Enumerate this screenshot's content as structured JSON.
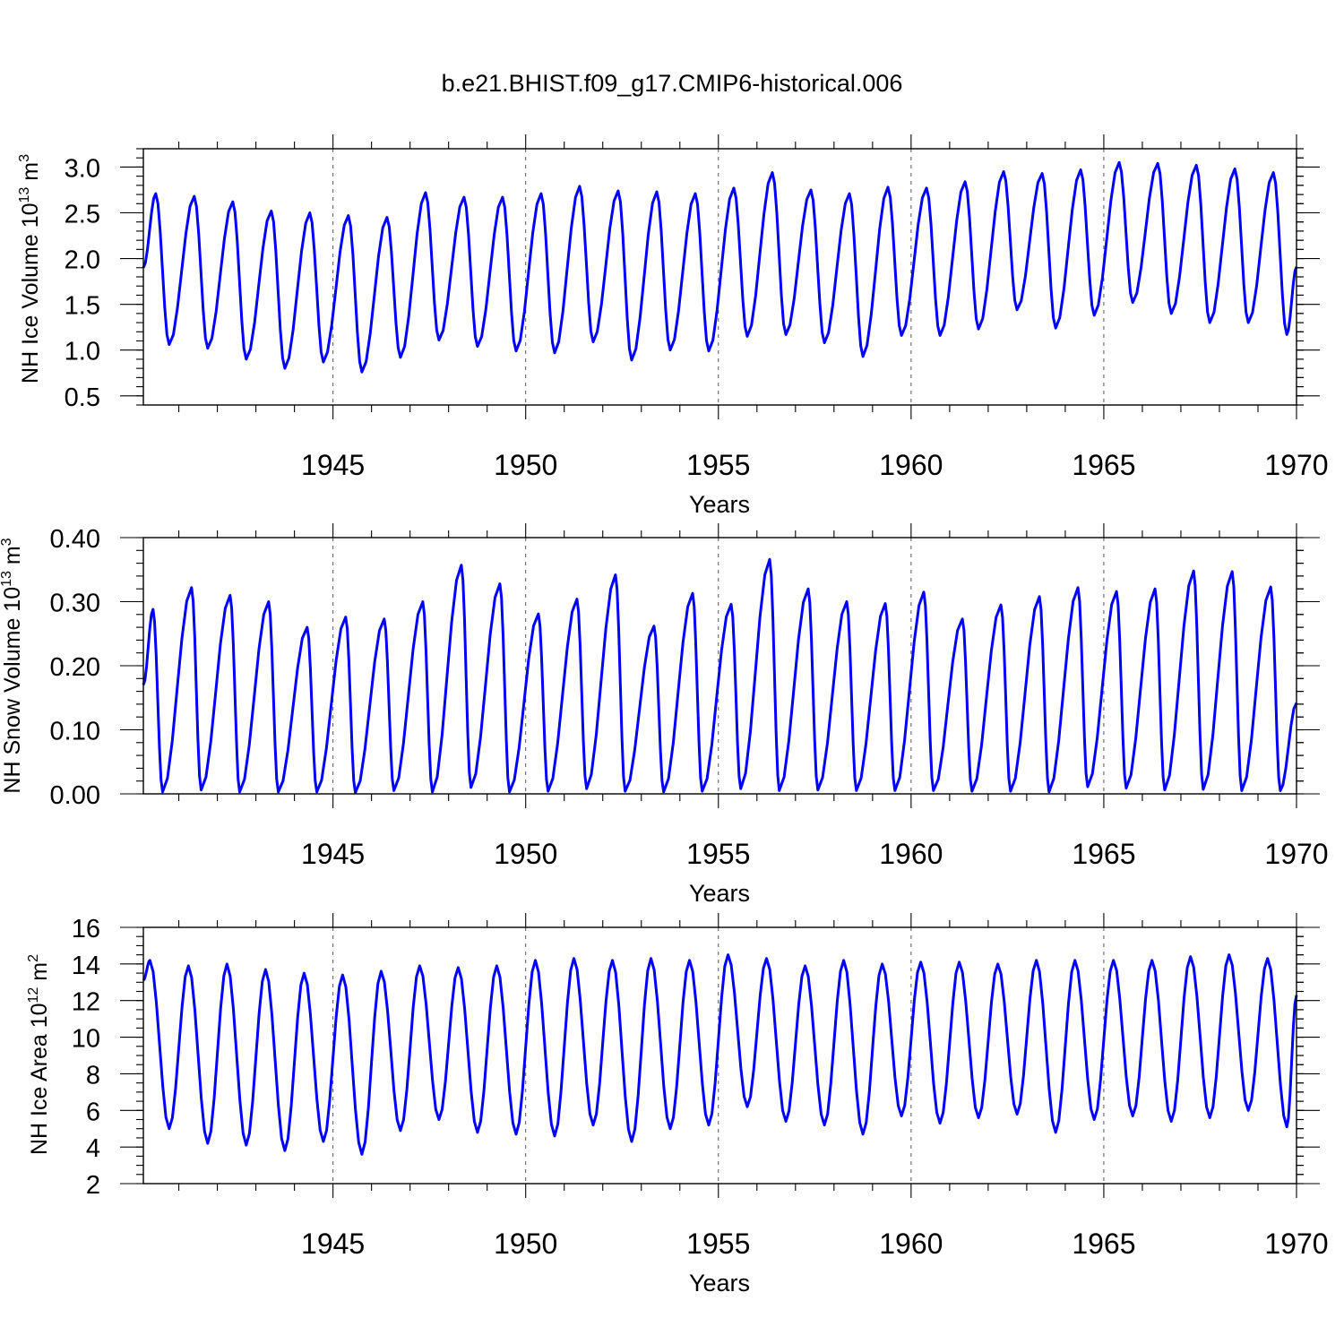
{
  "chart_data": {
    "type": "line",
    "title": "b.e21.BHIST.f09_g17.CMIP6-historical.006",
    "series_color": "#0000ff",
    "grid_years": [
      1945,
      1950,
      1955,
      1960,
      1965
    ],
    "x_tick_labels": [
      "1945",
      "1950",
      "1955",
      "1960",
      "1965",
      "1970"
    ],
    "panels": [
      {
        "name": "ice-volume",
        "ylabel": "NH Ice Volume 10",
        "ylabel_exp": "13",
        "ylabel_unit": " m",
        "ylabel_unit_exp": "3",
        "xlabel": "Years",
        "xlim": [
          1940.08,
          1970.0
        ],
        "ylim": [
          0.4,
          3.2
        ],
        "yticks": [
          "0.5",
          "1.0",
          "1.5",
          "2.0",
          "2.5",
          "3.0"
        ],
        "ytick_values": [
          0.5,
          1.0,
          1.5,
          2.0,
          2.5,
          3.0
        ],
        "minor_step": 0.1,
        "anchor": {
          "x": 1940.08,
          "y": 1.9
        },
        "peaks": [
          [
            1940.4,
            2.71
          ],
          [
            1941.4,
            2.68
          ],
          [
            1942.4,
            2.62
          ],
          [
            1943.4,
            2.52
          ],
          [
            1944.4,
            2.5
          ],
          [
            1945.4,
            2.47
          ],
          [
            1946.4,
            2.45
          ],
          [
            1947.4,
            2.72
          ],
          [
            1948.4,
            2.67
          ],
          [
            1949.4,
            2.67
          ],
          [
            1950.4,
            2.71
          ],
          [
            1951.4,
            2.79
          ],
          [
            1952.4,
            2.74
          ],
          [
            1953.4,
            2.73
          ],
          [
            1954.4,
            2.71
          ],
          [
            1955.4,
            2.77
          ],
          [
            1956.4,
            2.94
          ],
          [
            1957.4,
            2.75
          ],
          [
            1958.4,
            2.71
          ],
          [
            1959.4,
            2.78
          ],
          [
            1960.4,
            2.77
          ],
          [
            1961.4,
            2.84
          ],
          [
            1962.4,
            2.95
          ],
          [
            1963.4,
            2.93
          ],
          [
            1964.4,
            2.97
          ],
          [
            1965.4,
            3.05
          ],
          [
            1966.4,
            3.04
          ],
          [
            1967.4,
            3.02
          ],
          [
            1968.4,
            2.98
          ],
          [
            1969.4,
            2.94
          ]
        ],
        "troughs": [
          [
            1940.75,
            1.06
          ],
          [
            1941.75,
            1.02
          ],
          [
            1942.75,
            0.9
          ],
          [
            1943.75,
            0.8
          ],
          [
            1944.75,
            0.87
          ],
          [
            1945.75,
            0.76
          ],
          [
            1946.75,
            0.92
          ],
          [
            1947.75,
            1.11
          ],
          [
            1948.75,
            1.04
          ],
          [
            1949.75,
            0.99
          ],
          [
            1950.75,
            0.97
          ],
          [
            1951.75,
            1.09
          ],
          [
            1952.75,
            0.89
          ],
          [
            1953.75,
            1.0
          ],
          [
            1954.75,
            0.99
          ],
          [
            1955.75,
            1.15
          ],
          [
            1956.75,
            1.17
          ],
          [
            1957.75,
            1.08
          ],
          [
            1958.75,
            0.93
          ],
          [
            1959.75,
            1.16
          ],
          [
            1960.75,
            1.16
          ],
          [
            1961.75,
            1.23
          ],
          [
            1962.75,
            1.44
          ],
          [
            1963.75,
            1.24
          ],
          [
            1964.75,
            1.38
          ],
          [
            1965.75,
            1.52
          ],
          [
            1966.75,
            1.4
          ],
          [
            1967.75,
            1.3
          ],
          [
            1968.75,
            1.3
          ],
          [
            1969.75,
            1.17
          ]
        ],
        "end": {
          "x": 1970.0,
          "y": 1.91
        }
      },
      {
        "name": "snow-volume",
        "ylabel": "NH Snow Volume 10",
        "ylabel_exp": "13",
        "ylabel_unit": " m",
        "ylabel_unit_exp": "3",
        "xlabel": "Years",
        "xlim": [
          1940.08,
          1970.0
        ],
        "ylim": [
          0.0,
          0.4
        ],
        "yticks": [
          "0.00",
          "0.10",
          "0.20",
          "0.30",
          "0.40"
        ],
        "ytick_values": [
          0.0,
          0.1,
          0.2,
          0.3,
          0.4
        ],
        "minor_step": 0.02,
        "anchor": {
          "x": 1940.08,
          "y": 0.17
        },
        "peaks": [
          [
            1940.33,
            0.288
          ],
          [
            1941.33,
            0.322
          ],
          [
            1942.33,
            0.31
          ],
          [
            1943.33,
            0.3
          ],
          [
            1944.33,
            0.26
          ],
          [
            1945.33,
            0.276
          ],
          [
            1946.33,
            0.273
          ],
          [
            1947.33,
            0.3
          ],
          [
            1948.33,
            0.357
          ],
          [
            1949.33,
            0.328
          ],
          [
            1950.33,
            0.281
          ],
          [
            1951.33,
            0.304
          ],
          [
            1952.33,
            0.342
          ],
          [
            1953.33,
            0.262
          ],
          [
            1954.33,
            0.313
          ],
          [
            1955.33,
            0.296
          ],
          [
            1956.33,
            0.366
          ],
          [
            1957.33,
            0.32
          ],
          [
            1958.33,
            0.3
          ],
          [
            1959.33,
            0.297
          ],
          [
            1960.33,
            0.315
          ],
          [
            1961.33,
            0.273
          ],
          [
            1962.33,
            0.295
          ],
          [
            1963.33,
            0.308
          ],
          [
            1964.33,
            0.322
          ],
          [
            1965.33,
            0.316
          ],
          [
            1966.33,
            0.32
          ],
          [
            1967.33,
            0.348
          ],
          [
            1968.33,
            0.347
          ],
          [
            1969.33,
            0.323
          ]
        ],
        "troughs": [
          [
            1940.58,
            0.003
          ],
          [
            1941.58,
            0.006
          ],
          [
            1942.58,
            0.003
          ],
          [
            1943.58,
            0.003
          ],
          [
            1944.58,
            0.003
          ],
          [
            1945.58,
            0.002
          ],
          [
            1946.58,
            0.005
          ],
          [
            1947.58,
            0.003
          ],
          [
            1948.58,
            0.01
          ],
          [
            1949.58,
            0.003
          ],
          [
            1950.58,
            0.004
          ],
          [
            1951.58,
            0.008
          ],
          [
            1952.58,
            0.004
          ],
          [
            1953.58,
            0.003
          ],
          [
            1954.58,
            0.004
          ],
          [
            1955.58,
            0.008
          ],
          [
            1956.58,
            0.005
          ],
          [
            1957.58,
            0.006
          ],
          [
            1958.58,
            0.005
          ],
          [
            1959.58,
            0.005
          ],
          [
            1960.58,
            0.005
          ],
          [
            1961.58,
            0.004
          ],
          [
            1962.58,
            0.004
          ],
          [
            1963.58,
            0.003
          ],
          [
            1964.58,
            0.011
          ],
          [
            1965.58,
            0.009
          ],
          [
            1966.58,
            0.006
          ],
          [
            1967.58,
            0.007
          ],
          [
            1968.58,
            0.005
          ],
          [
            1969.58,
            0.005
          ]
        ],
        "end": {
          "x": 1970.0,
          "y": 0.142
        }
      },
      {
        "name": "ice-area",
        "ylabel": "NH Ice Area 10",
        "ylabel_exp": "12",
        "ylabel_unit": " m",
        "ylabel_unit_exp": "2",
        "xlabel": "Years",
        "xlim": [
          1940.08,
          1970.0
        ],
        "ylim": [
          2,
          16
        ],
        "yticks": [
          "2",
          "4",
          "6",
          "8",
          "10",
          "12",
          "14",
          "16"
        ],
        "ytick_values": [
          2,
          4,
          6,
          8,
          10,
          12,
          14,
          16
        ],
        "minor_step": 0.5,
        "anchor": {
          "x": 1940.08,
          "y": 13.1
        },
        "peaks": [
          [
            1940.25,
            14.2
          ],
          [
            1941.25,
            13.9
          ],
          [
            1942.25,
            14.0
          ],
          [
            1943.25,
            13.7
          ],
          [
            1944.25,
            13.5
          ],
          [
            1945.25,
            13.4
          ],
          [
            1946.25,
            13.6
          ],
          [
            1947.25,
            13.9
          ],
          [
            1948.25,
            13.8
          ],
          [
            1949.25,
            13.9
          ],
          [
            1950.25,
            14.2
          ],
          [
            1951.25,
            14.3
          ],
          [
            1952.25,
            14.2
          ],
          [
            1953.25,
            14.3
          ],
          [
            1954.25,
            14.2
          ],
          [
            1955.25,
            14.5
          ],
          [
            1956.25,
            14.3
          ],
          [
            1957.25,
            13.9
          ],
          [
            1958.25,
            14.2
          ],
          [
            1959.25,
            14.0
          ],
          [
            1960.25,
            14.1
          ],
          [
            1961.25,
            14.1
          ],
          [
            1962.25,
            14.0
          ],
          [
            1963.25,
            14.2
          ],
          [
            1964.25,
            14.2
          ],
          [
            1965.25,
            14.2
          ],
          [
            1966.25,
            14.2
          ],
          [
            1967.25,
            14.4
          ],
          [
            1968.25,
            14.5
          ],
          [
            1969.25,
            14.3
          ]
        ],
        "troughs": [
          [
            1940.75,
            5.0
          ],
          [
            1941.75,
            4.2
          ],
          [
            1942.75,
            4.1
          ],
          [
            1943.75,
            3.8
          ],
          [
            1944.75,
            4.3
          ],
          [
            1945.75,
            3.6
          ],
          [
            1946.75,
            4.9
          ],
          [
            1947.75,
            5.5
          ],
          [
            1948.75,
            4.8
          ],
          [
            1949.75,
            4.7
          ],
          [
            1950.75,
            4.6
          ],
          [
            1951.75,
            5.2
          ],
          [
            1952.75,
            4.3
          ],
          [
            1953.75,
            5.0
          ],
          [
            1954.75,
            5.2
          ],
          [
            1955.75,
            6.2
          ],
          [
            1956.75,
            5.4
          ],
          [
            1957.75,
            5.2
          ],
          [
            1958.75,
            4.7
          ],
          [
            1959.75,
            5.7
          ],
          [
            1960.75,
            5.3
          ],
          [
            1961.75,
            5.6
          ],
          [
            1962.75,
            5.8
          ],
          [
            1963.75,
            4.8
          ],
          [
            1964.75,
            5.5
          ],
          [
            1965.75,
            5.7
          ],
          [
            1966.75,
            5.4
          ],
          [
            1967.75,
            5.6
          ],
          [
            1968.75,
            6.0
          ],
          [
            1969.75,
            5.1
          ]
        ],
        "end": {
          "x": 1970.0,
          "y": 12.3
        }
      }
    ]
  }
}
